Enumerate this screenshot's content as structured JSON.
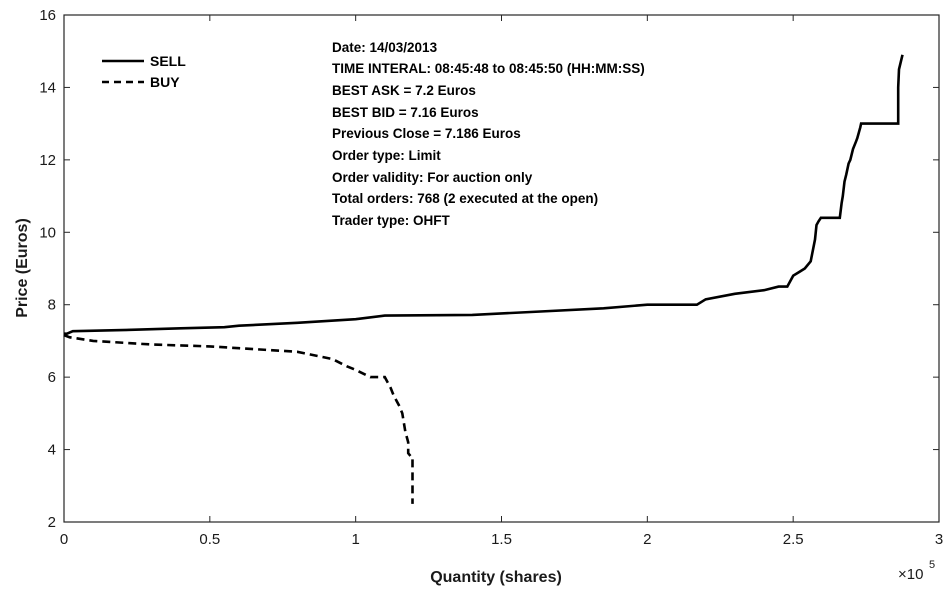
{
  "chart_data": {
    "type": "line",
    "xlabel": "Quantity (shares)",
    "ylabel": "Price (Euros)",
    "x_scale_label": "×10",
    "x_scale_exponent": "5",
    "xlim": [
      0,
      300000
    ],
    "ylim": [
      2,
      16
    ],
    "x_ticks": [
      0,
      50000,
      100000,
      150000,
      200000,
      250000,
      300000
    ],
    "x_tick_labels": [
      "0",
      "0.5",
      "1",
      "1.5",
      "2",
      "2.5",
      "3"
    ],
    "y_ticks": [
      2,
      4,
      6,
      8,
      10,
      12,
      14,
      16
    ],
    "y_tick_labels": [
      "2",
      "4",
      "6",
      "8",
      "10",
      "12",
      "14",
      "16"
    ],
    "grid": false,
    "legend_position": "top-left",
    "annotation_lines": [
      "Date: 14/03/2013",
      "TIME INTERAL: 08:45:48 to 08:45:50 (HH:MM:SS)",
      "BEST ASK = 7.2 Euros",
      "BEST BID = 7.16 Euros",
      "Previous Close = 7.186 Euros",
      "Order type: Limit",
      "Order validity: For auction only",
      "Total orders: 768 (2 executed at the open)",
      "Trader type: OHFT"
    ],
    "series": [
      {
        "name": "SELL",
        "style": "solid",
        "color": "#000000",
        "x": [
          0,
          1000,
          3000,
          20000,
          40000,
          55000,
          60000,
          80000,
          100000,
          110000,
          140000,
          160000,
          185000,
          200000,
          217000,
          220000,
          230000,
          240000,
          245000,
          248000,
          250000,
          252000,
          254000,
          256000,
          257500,
          258000,
          258700,
          259500,
          266000,
          266600,
          267000,
          267600,
          268200,
          269000,
          269600,
          270500,
          271500,
          272000,
          273000,
          273300,
          274000,
          286000,
          286000,
          286300,
          287500,
          287500
        ],
        "y": [
          7.2,
          7.2,
          7.27,
          7.3,
          7.35,
          7.38,
          7.42,
          7.5,
          7.6,
          7.7,
          7.72,
          7.8,
          7.9,
          8.0,
          8.0,
          8.15,
          8.3,
          8.4,
          8.5,
          8.5,
          8.8,
          8.9,
          9.0,
          9.2,
          9.8,
          10.2,
          10.3,
          10.4,
          10.4,
          10.8,
          11.0,
          11.4,
          11.6,
          11.9,
          12.0,
          12.3,
          12.5,
          12.6,
          12.9,
          13.0,
          13.0,
          13.0,
          14.0,
          14.5,
          14.9,
          14.9
        ]
      },
      {
        "name": "BUY",
        "style": "dashed",
        "color": "#000000",
        "x": [
          0,
          2000,
          10000,
          30000,
          50000,
          60000,
          80000,
          92000,
          97000,
          100000,
          105000,
          110000,
          112000,
          113000,
          114000,
          115000,
          116000,
          117000,
          118000,
          118000,
          119000,
          119500,
          119500
        ],
        "y": [
          7.16,
          7.1,
          7.0,
          6.9,
          6.85,
          6.8,
          6.7,
          6.5,
          6.3,
          6.2,
          6.0,
          6.0,
          5.7,
          5.5,
          5.35,
          5.2,
          5.0,
          4.5,
          4.2,
          3.9,
          3.8,
          3.8,
          2.5
        ]
      }
    ]
  }
}
